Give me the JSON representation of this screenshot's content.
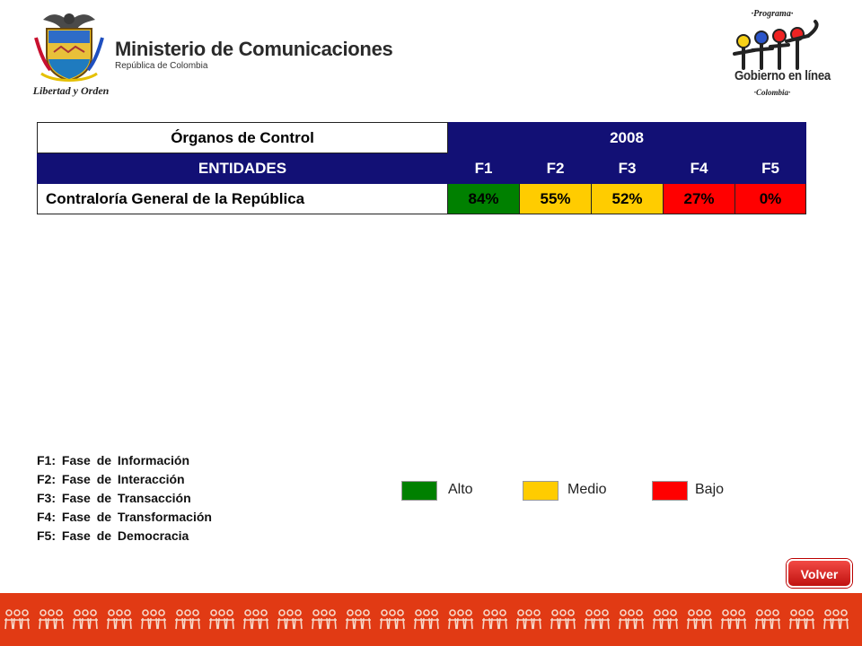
{
  "header": {
    "ministry_title": "Ministerio de Comunicaciones",
    "ministry_subtitle": "República de Colombia",
    "motto": "Libertad y Orden",
    "program_label": "·Programa·",
    "program_name": "Gobierno en línea",
    "program_country": "·Colombia·"
  },
  "table": {
    "group_title": "Órganos de Control",
    "year": "2008",
    "columns": [
      "ENTIDADES",
      "F1",
      "F2",
      "F3",
      "F4",
      "F5"
    ],
    "rows": [
      {
        "entity": "Contraloría General de la República",
        "values": [
          "84%",
          "55%",
          "52%",
          "27%",
          "0%"
        ],
        "colors": [
          "#008000",
          "#ffcc00",
          "#ffcc00",
          "#ff0000",
          "#ff0000"
        ]
      }
    ]
  },
  "phases": [
    "F1: Fase de Información",
    "F2: Fase de Interacción",
    "F3: Fase de Transacción",
    "F4: Fase de Transformación",
    "F5: Fase de Democracia"
  ],
  "legend": [
    {
      "label": "Alto",
      "color": "#008000"
    },
    {
      "label": "Medio",
      "color": "#ffcc00"
    },
    {
      "label": "Bajo",
      "color": "#ff0000"
    }
  ],
  "volver_label": "Volver",
  "colors": {
    "header_navy": "#121075",
    "footer_red": "#e13a14"
  }
}
